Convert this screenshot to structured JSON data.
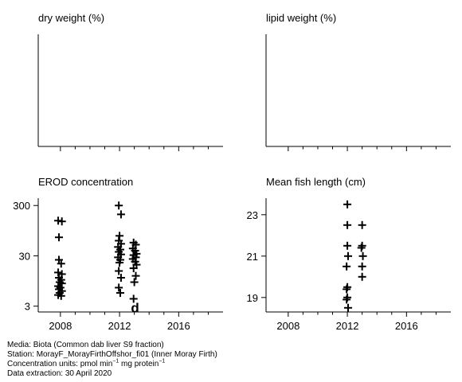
{
  "chart_data": [
    {
      "id": "dry",
      "type": "scatter",
      "title": "dry weight (%)",
      "xlim": [
        2006.5,
        2019
      ],
      "x_ticks": [],
      "y_ticks": [],
      "points": []
    },
    {
      "id": "lipid",
      "type": "scatter",
      "title": "lipid weight (%)",
      "xlim": [
        2006.5,
        2019
      ],
      "x_ticks": [],
      "y_ticks": [],
      "points": []
    },
    {
      "id": "erod",
      "type": "scatter",
      "title": "EROD concentration",
      "y_scale": "log",
      "ylim": [
        2.3,
        420
      ],
      "xlim": [
        2006.5,
        2019
      ],
      "x_ticks": [
        2008,
        2012,
        2016
      ],
      "y_ticks": [
        300,
        30,
        3
      ],
      "marker": "+",
      "points": [
        {
          "x": 2007.85,
          "y": 150
        },
        {
          "x": 2008.1,
          "y": 145
        },
        {
          "x": 2007.9,
          "y": 70
        },
        {
          "x": 2007.9,
          "y": 25
        },
        {
          "x": 2008.05,
          "y": 21
        },
        {
          "x": 2007.85,
          "y": 14
        },
        {
          "x": 2008.1,
          "y": 13
        },
        {
          "x": 2007.9,
          "y": 11
        },
        {
          "x": 2008.05,
          "y": 10
        },
        {
          "x": 2007.95,
          "y": 9
        },
        {
          "x": 2008.1,
          "y": 8.5
        },
        {
          "x": 2007.85,
          "y": 7.5
        },
        {
          "x": 2008.0,
          "y": 7
        },
        {
          "x": 2007.9,
          "y": 6.5
        },
        {
          "x": 2008.1,
          "y": 6
        },
        {
          "x": 2007.95,
          "y": 5.5
        },
        {
          "x": 2007.85,
          "y": 5
        },
        {
          "x": 2008.05,
          "y": 4.8
        },
        {
          "x": 2011.95,
          "y": 300
        },
        {
          "x": 2012.1,
          "y": 200
        },
        {
          "x": 2012.0,
          "y": 75
        },
        {
          "x": 2011.95,
          "y": 60
        },
        {
          "x": 2012.1,
          "y": 52
        },
        {
          "x": 2011.9,
          "y": 45
        },
        {
          "x": 2012.05,
          "y": 40
        },
        {
          "x": 2011.95,
          "y": 36
        },
        {
          "x": 2012.1,
          "y": 32
        },
        {
          "x": 2011.9,
          "y": 28
        },
        {
          "x": 2012.05,
          "y": 25
        },
        {
          "x": 2012.0,
          "y": 22
        },
        {
          "x": 2011.95,
          "y": 15
        },
        {
          "x": 2012.1,
          "y": 11
        },
        {
          "x": 2011.95,
          "y": 7
        },
        {
          "x": 2012.05,
          "y": 5.5
        },
        {
          "x": 2012.95,
          "y": 55
        },
        {
          "x": 2013.1,
          "y": 50
        },
        {
          "x": 2012.9,
          "y": 42
        },
        {
          "x": 2013.05,
          "y": 38
        },
        {
          "x": 2013.15,
          "y": 33
        },
        {
          "x": 2012.95,
          "y": 31
        },
        {
          "x": 2013.1,
          "y": 28
        },
        {
          "x": 2012.9,
          "y": 26
        },
        {
          "x": 2013.05,
          "y": 23
        },
        {
          "x": 2013.15,
          "y": 20
        },
        {
          "x": 2012.95,
          "y": 17
        },
        {
          "x": 2013.1,
          "y": 12
        },
        {
          "x": 2013.0,
          "y": 9
        },
        {
          "x": 2012.95,
          "y": 4.2
        }
      ],
      "annotations": [
        {
          "text": "d",
          "x": 2013.05,
          "y": 3
        }
      ]
    },
    {
      "id": "length",
      "type": "scatter",
      "title": "Mean fish length (cm)",
      "ylim": [
        18.3,
        23.8
      ],
      "xlim": [
        2006.5,
        2019
      ],
      "x_ticks": [
        2008,
        2012,
        2016
      ],
      "y_ticks": [
        23,
        21,
        19
      ],
      "marker": "+",
      "points": [
        {
          "x": 2012.0,
          "y": 23.5
        },
        {
          "x": 2012.0,
          "y": 22.5
        },
        {
          "x": 2012.0,
          "y": 21.5
        },
        {
          "x": 2012.05,
          "y": 21.0
        },
        {
          "x": 2011.95,
          "y": 20.5
        },
        {
          "x": 2012.0,
          "y": 19.5
        },
        {
          "x": 2011.95,
          "y": 19.4
        },
        {
          "x": 2012.0,
          "y": 19.0
        },
        {
          "x": 2011.95,
          "y": 18.9
        },
        {
          "x": 2012.05,
          "y": 18.5
        },
        {
          "x": 2013.0,
          "y": 22.5
        },
        {
          "x": 2013.0,
          "y": 21.5
        },
        {
          "x": 2013.05,
          "y": 21.0
        },
        {
          "x": 2013.0,
          "y": 20.5
        },
        {
          "x": 2013.0,
          "y": 20.0
        },
        {
          "x": 2012.95,
          "y": 21.4
        }
      ]
    }
  ],
  "footer": {
    "media": "Media: Biota (Common dab liver S9 fraction)",
    "station": "Station: MorayF_MorayFirthOffshor_fi01 (Inner Moray Firth)",
    "units_prefix": "Concentration units: pmol min",
    "units_sup1": "−1",
    "units_mid": " mg protein",
    "units_sup2": "−1",
    "extraction": "Data extraction: 30 April 2020"
  }
}
